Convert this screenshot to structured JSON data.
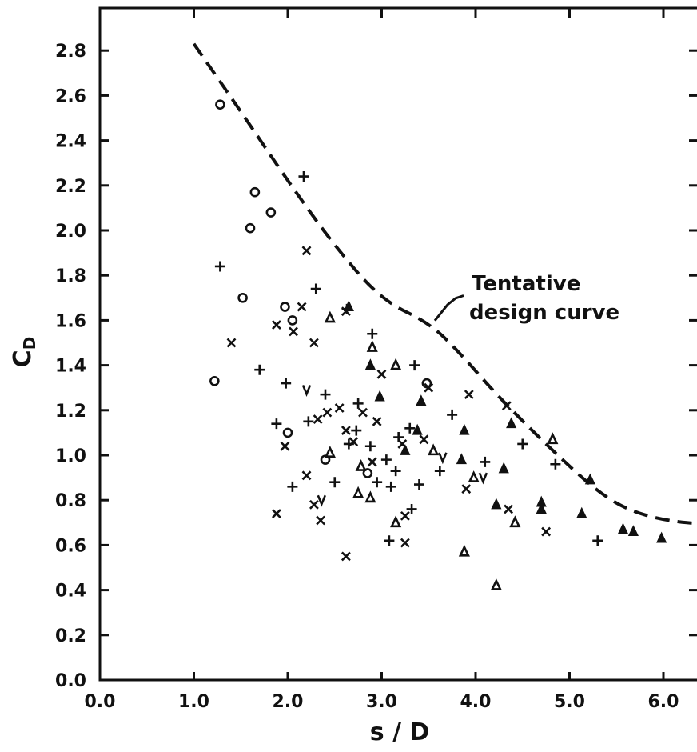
{
  "chart_data": {
    "type": "scatter",
    "xlabel": "s / D",
    "ylabel": {
      "main": "C",
      "sub": "D"
    },
    "xlim": [
      0.0,
      6.5
    ],
    "ylim": [
      0.0,
      3.0
    ],
    "xticks": [
      "0.0",
      "1.0",
      "2.0",
      "3.0",
      "4.0",
      "5.0",
      "6.0"
    ],
    "yticks": [
      "0.0",
      "0.2",
      "0.4",
      "0.6",
      "0.8",
      "1.0",
      "1.2",
      "1.4",
      "1.6",
      "1.8",
      "2.0",
      "2.2",
      "2.4",
      "2.6",
      "2.8"
    ],
    "grid": false,
    "annotation": {
      "text_line1": "Tentative",
      "text_line2": "design curve",
      "points_to": [
        3.6,
        1.62
      ]
    },
    "curve": {
      "style": "dashed",
      "points": [
        [
          1.0,
          2.83
        ],
        [
          1.5,
          2.53
        ],
        [
          2.0,
          2.22
        ],
        [
          2.5,
          1.93
        ],
        [
          3.0,
          1.69
        ],
        [
          3.5,
          1.59
        ],
        [
          3.8,
          1.47
        ],
        [
          4.2,
          1.28
        ],
        [
          4.6,
          1.11
        ],
        [
          5.0,
          0.95
        ],
        [
          5.3,
          0.84
        ],
        [
          5.6,
          0.76
        ],
        [
          6.0,
          0.71
        ],
        [
          6.5,
          0.69
        ]
      ]
    },
    "series": [
      {
        "marker": "circle",
        "points": [
          [
            1.28,
            2.56
          ],
          [
            1.65,
            2.17
          ],
          [
            1.6,
            2.01
          ],
          [
            1.82,
            2.08
          ],
          [
            1.52,
            1.7
          ],
          [
            1.97,
            1.66
          ],
          [
            2.05,
            1.6
          ],
          [
            1.22,
            1.33
          ],
          [
            2.0,
            1.1
          ],
          [
            2.4,
            0.98
          ],
          [
            2.85,
            0.92
          ],
          [
            3.48,
            1.32
          ]
        ]
      },
      {
        "marker": "plus",
        "points": [
          [
            2.17,
            2.24
          ],
          [
            1.28,
            1.84
          ],
          [
            2.3,
            1.74
          ],
          [
            2.63,
            1.65
          ],
          [
            2.9,
            1.54
          ],
          [
            1.7,
            1.38
          ],
          [
            3.35,
            1.4
          ],
          [
            1.98,
            1.32
          ],
          [
            2.4,
            1.27
          ],
          [
            1.88,
            1.14
          ],
          [
            2.22,
            1.15
          ],
          [
            2.75,
            1.23
          ],
          [
            2.73,
            1.11
          ],
          [
            3.05,
            0.98
          ],
          [
            3.18,
            1.08
          ],
          [
            3.3,
            1.12
          ],
          [
            2.05,
            0.86
          ],
          [
            2.5,
            0.88
          ],
          [
            2.65,
            1.05
          ],
          [
            2.95,
            0.88
          ],
          [
            3.1,
            0.86
          ],
          [
            3.4,
            0.87
          ],
          [
            3.08,
            0.62
          ],
          [
            3.32,
            0.76
          ],
          [
            3.62,
            0.93
          ],
          [
            3.75,
            1.18
          ],
          [
            4.1,
            0.97
          ],
          [
            4.5,
            1.05
          ],
          [
            4.85,
            0.96
          ],
          [
            5.3,
            0.62
          ],
          [
            2.88,
            1.04
          ],
          [
            3.15,
            0.93
          ]
        ]
      },
      {
        "marker": "x",
        "points": [
          [
            2.2,
            1.91
          ],
          [
            1.4,
            1.5
          ],
          [
            2.15,
            1.66
          ],
          [
            1.88,
            1.58
          ],
          [
            2.06,
            1.55
          ],
          [
            2.28,
            1.5
          ],
          [
            2.62,
            1.64
          ],
          [
            3.0,
            1.36
          ],
          [
            3.5,
            1.3
          ],
          [
            3.93,
            1.27
          ],
          [
            4.33,
            1.22
          ],
          [
            2.32,
            1.16
          ],
          [
            2.42,
            1.19
          ],
          [
            2.55,
            1.21
          ],
          [
            2.8,
            1.19
          ],
          [
            2.95,
            1.15
          ],
          [
            2.62,
            1.11
          ],
          [
            3.45,
            1.07
          ],
          [
            1.97,
            1.04
          ],
          [
            2.2,
            0.91
          ],
          [
            2.7,
            1.06
          ],
          [
            2.9,
            0.97
          ],
          [
            3.22,
            1.05
          ],
          [
            2.28,
            0.78
          ],
          [
            1.88,
            0.74
          ],
          [
            2.35,
            0.71
          ],
          [
            2.62,
            0.55
          ],
          [
            3.25,
            0.61
          ],
          [
            3.25,
            0.73
          ],
          [
            3.9,
            0.85
          ],
          [
            4.35,
            0.76
          ],
          [
            4.75,
            0.66
          ]
        ]
      },
      {
        "marker": "triangle-open",
        "points": [
          [
            2.45,
            1.61
          ],
          [
            2.9,
            1.48
          ],
          [
            3.15,
            1.4
          ],
          [
            2.45,
            1.01
          ],
          [
            2.75,
            0.83
          ],
          [
            2.88,
            0.81
          ],
          [
            3.15,
            0.7
          ],
          [
            3.55,
            1.02
          ],
          [
            3.98,
            0.9
          ],
          [
            4.42,
            0.7
          ],
          [
            3.88,
            0.57
          ],
          [
            4.22,
            0.42
          ],
          [
            4.82,
            1.07
          ],
          [
            2.78,
            0.95
          ]
        ]
      },
      {
        "marker": "triangle-filled",
        "points": [
          [
            2.65,
            1.66
          ],
          [
            2.88,
            1.4
          ],
          [
            2.98,
            1.26
          ],
          [
            3.42,
            1.24
          ],
          [
            3.38,
            1.11
          ],
          [
            3.25,
            1.02
          ],
          [
            3.85,
            0.98
          ],
          [
            3.88,
            1.11
          ],
          [
            4.38,
            1.14
          ],
          [
            4.3,
            0.94
          ],
          [
            4.22,
            0.78
          ],
          [
            4.7,
            0.79
          ],
          [
            4.7,
            0.76
          ],
          [
            5.13,
            0.74
          ],
          [
            5.22,
            0.89
          ],
          [
            5.57,
            0.67
          ],
          [
            5.68,
            0.66
          ],
          [
            5.98,
            0.63
          ]
        ]
      },
      {
        "marker": "v",
        "points": [
          [
            2.2,
            1.29
          ],
          [
            2.36,
            0.8
          ],
          [
            3.65,
            0.99
          ],
          [
            4.08,
            0.9
          ]
        ]
      }
    ]
  }
}
